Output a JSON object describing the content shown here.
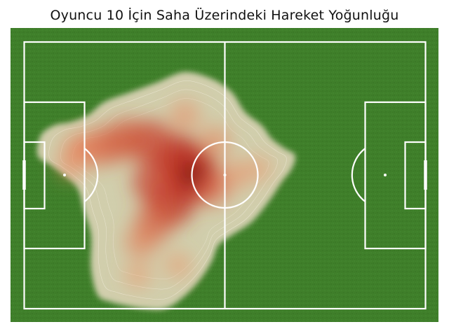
{
  "chart_data": {
    "type": "heatmap",
    "title": "Oyuncu 10 İçin Saha Üzerindeki Hareket Yoğunluğu",
    "xlabel": "",
    "ylabel": "",
    "xlim": [
      0,
      120
    ],
    "ylim": [
      0,
      80
    ],
    "grid": false,
    "legend": "none",
    "colors": {
      "pitch": "#3f7f2a",
      "lines": "#ffffff",
      "density_low": "#d9d3b4",
      "density_mid": "#f08a5d",
      "density_high": "#b01d16",
      "density_peak": "#5a0c08"
    },
    "density_points": [
      {
        "x": 50,
        "y": 40,
        "weight": 1.0
      },
      {
        "x": 46,
        "y": 35,
        "weight": 0.85
      },
      {
        "x": 44,
        "y": 48,
        "weight": 0.8
      },
      {
        "x": 39,
        "y": 42,
        "weight": 0.7
      },
      {
        "x": 38,
        "y": 30,
        "weight": 0.7
      },
      {
        "x": 31,
        "y": 29,
        "weight": 0.6
      },
      {
        "x": 25,
        "y": 31,
        "weight": 0.55
      },
      {
        "x": 20,
        "y": 32,
        "weight": 0.4
      },
      {
        "x": 16,
        "y": 32,
        "weight": 0.3
      },
      {
        "x": 14,
        "y": 37,
        "weight": 0.25
      },
      {
        "x": 39,
        "y": 54,
        "weight": 0.55
      },
      {
        "x": 35,
        "y": 60,
        "weight": 0.35
      },
      {
        "x": 56,
        "y": 44,
        "weight": 0.45
      },
      {
        "x": 57,
        "y": 30,
        "weight": 0.3
      },
      {
        "x": 63,
        "y": 40,
        "weight": 0.25
      },
      {
        "x": 70,
        "y": 38,
        "weight": 0.15
      },
      {
        "x": 48,
        "y": 22,
        "weight": 0.25
      },
      {
        "x": 34,
        "y": 70,
        "weight": 0.15
      },
      {
        "x": 46,
        "y": 67,
        "weight": 0.15
      }
    ],
    "density_outline": [
      [
        24,
        18
      ],
      [
        32,
        15
      ],
      [
        40,
        12
      ],
      [
        48,
        9
      ],
      [
        56,
        11
      ],
      [
        62,
        15
      ],
      [
        66,
        21
      ],
      [
        71,
        25
      ],
      [
        74,
        29
      ],
      [
        78,
        32
      ],
      [
        81,
        34
      ],
      [
        80,
        38
      ],
      [
        77,
        42
      ],
      [
        73,
        48
      ],
      [
        68,
        54
      ],
      [
        62,
        58
      ],
      [
        58,
        61
      ],
      [
        56,
        66
      ],
      [
        52,
        72
      ],
      [
        47,
        77
      ],
      [
        42,
        80
      ],
      [
        36,
        80
      ],
      [
        30,
        79
      ],
      [
        26,
        78
      ],
      [
        22,
        76
      ],
      [
        20,
        68
      ],
      [
        20,
        58
      ],
      [
        18,
        51
      ],
      [
        16,
        44
      ],
      [
        12,
        40
      ],
      [
        8,
        37
      ],
      [
        4,
        34
      ],
      [
        5,
        28
      ],
      [
        9,
        25
      ],
      [
        14,
        24
      ],
      [
        19,
        22
      ]
    ]
  }
}
